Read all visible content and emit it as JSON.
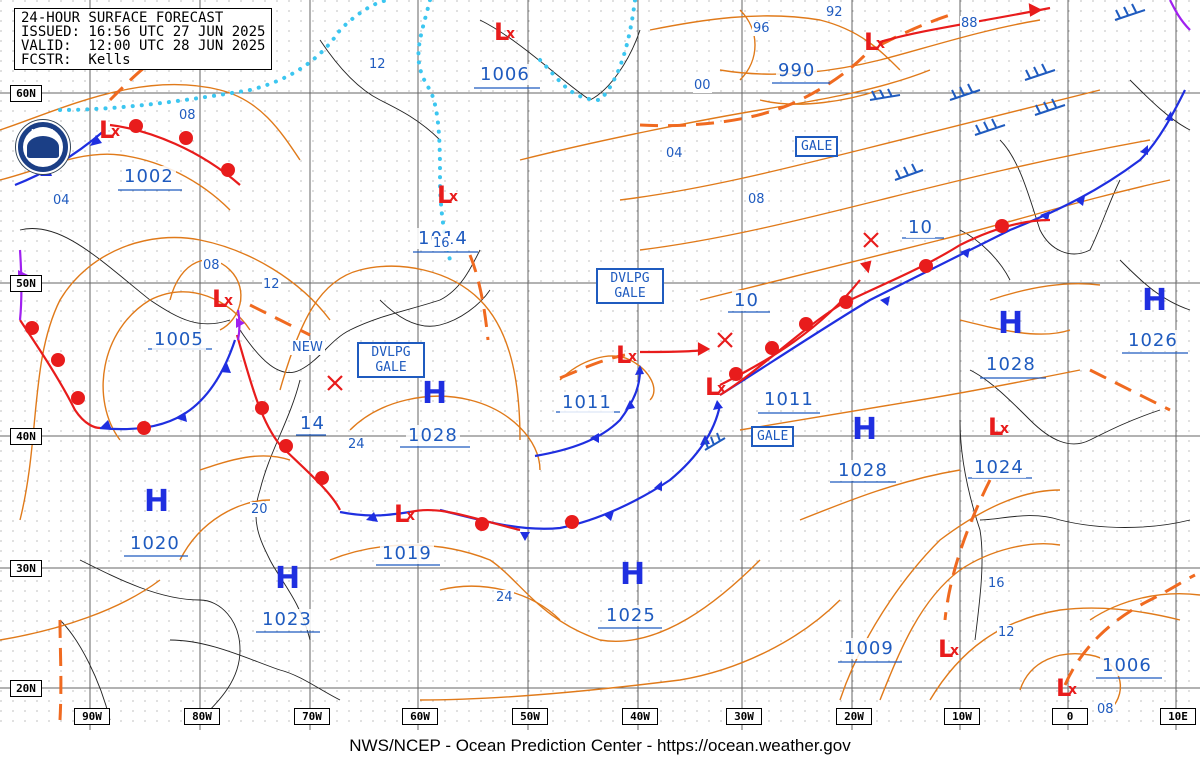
{
  "header": {
    "line1": "24-HOUR SURFACE FORECAST",
    "line2": "ISSUED: 16:56 UTC 27 JUN 2025",
    "line3": "VALID:  12:00 UTC 28 JUN 2025",
    "line4": "FCSTR:  Kells"
  },
  "footer": "NWS/NCEP - Ocean Prediction Center - https://ocean.weather.gov",
  "logo_text": "NOAA",
  "lat_labels": [
    "60N",
    "50N",
    "40N",
    "30N",
    "20N"
  ],
  "lon_labels": [
    "90W",
    "80W",
    "70W",
    "60W",
    "50W",
    "40W",
    "30W",
    "20W",
    "10W",
    "0",
    "10E"
  ],
  "highs": [
    {
      "label": "H",
      "value": "1028"
    },
    {
      "label": "H",
      "value": "1020"
    },
    {
      "label": "H",
      "value": "1023"
    },
    {
      "label": "H",
      "value": "1025"
    },
    {
      "label": "H",
      "value": "1028"
    },
    {
      "label": "H",
      "value": "1028"
    },
    {
      "label": "H",
      "value": "1026"
    }
  ],
  "lows": [
    {
      "value": "1002"
    },
    {
      "value": "1005"
    },
    {
      "value": "1014"
    },
    {
      "value": "1006"
    },
    {
      "value": "990"
    },
    {
      "value": "1019"
    },
    {
      "value": "1011"
    },
    {
      "value": "1011"
    },
    {
      "value": "1024"
    },
    {
      "value": "1009"
    },
    {
      "value": "1006"
    },
    {
      "value": "10"
    },
    {
      "value": "10"
    },
    {
      "value": "14"
    }
  ],
  "warnings": [
    "GALE",
    "DVLPG GALE",
    "DVLPG GALE",
    "GALE"
  ],
  "other_labels": [
    "NEW"
  ],
  "isobar_labels": [
    "08",
    "04",
    "08",
    "12",
    "12",
    "16",
    "20",
    "24",
    "24",
    "00",
    "04",
    "08",
    "96",
    "92",
    "88",
    "16",
    "12",
    "08"
  ],
  "colors": {
    "isobar": "#e07a1a",
    "warm_front": "#e81c1c",
    "cold_front": "#1f2fe0",
    "occluded": "#a020f0",
    "trough": "#f06a20",
    "ice": "#3cc6f0",
    "label_text": "#1f5bbf",
    "grid": "#666666"
  }
}
